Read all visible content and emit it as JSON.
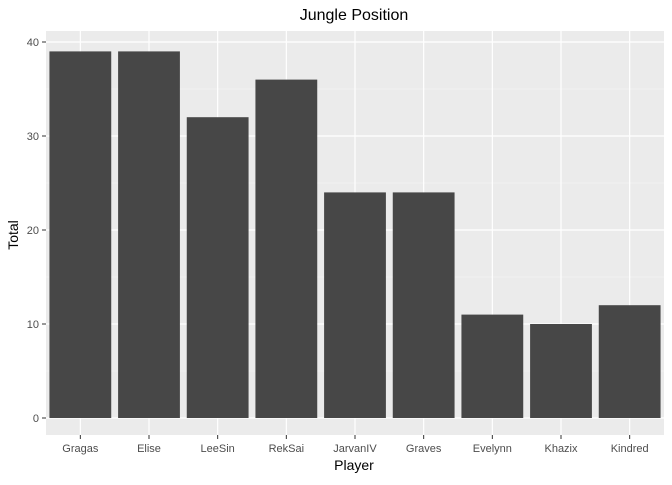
{
  "chart_data": {
    "type": "bar",
    "title": "Jungle Position",
    "xlabel": "Player",
    "ylabel": "Total",
    "categories": [
      "Gragas",
      "Elise",
      "LeeSin",
      "RekSai",
      "JarvanIV",
      "Graves",
      "Evelynn",
      "Khazix",
      "Kindred"
    ],
    "values": [
      39,
      39,
      32,
      36,
      24,
      24,
      11,
      10,
      12
    ],
    "ylim": [
      0,
      40
    ],
    "yticks": [
      0,
      10,
      20,
      30,
      40
    ],
    "grid": true,
    "legend": "none",
    "colors": {
      "panel": "#ebebeb",
      "bar": "#474747",
      "grid_major": "#ffffff",
      "tick": "#4d4d4d"
    }
  }
}
